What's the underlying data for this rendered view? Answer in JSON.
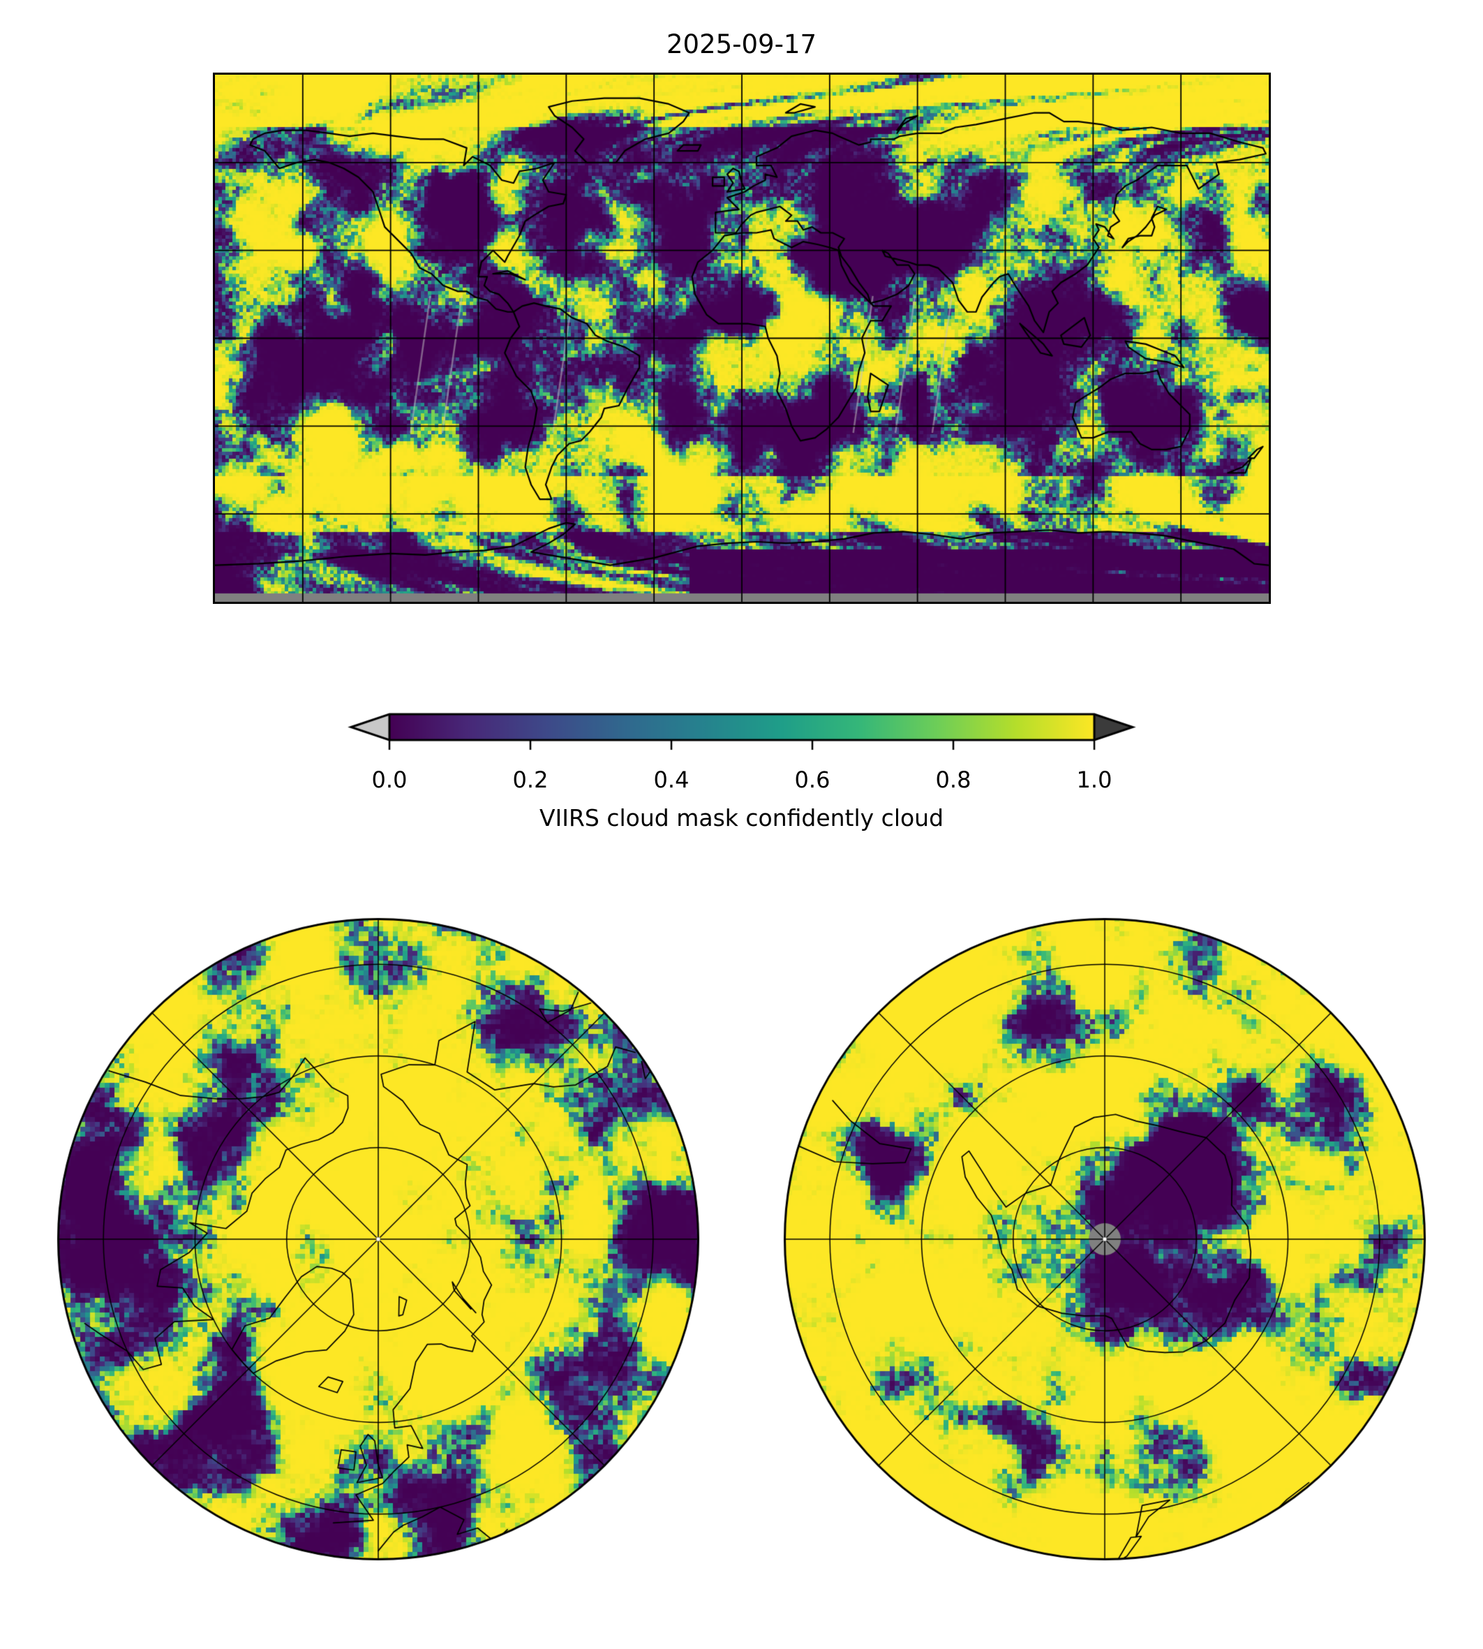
{
  "title": "2025-09-17",
  "colorbar": {
    "label": "VIIRS cloud mask confidently cloud",
    "tick_labels": [
      "0.0",
      "0.2",
      "0.4",
      "0.6",
      "0.8",
      "1.0"
    ],
    "vmin": 0,
    "vmax": 1,
    "colormap": "viridis",
    "extend": "both",
    "under_arrow_color": "#c8c8c8",
    "over_arrow_color": "#3b3b3b"
  },
  "colors": {
    "background": "#ffffff",
    "text": "#000000",
    "coastline": "#000000",
    "grid": "#000000",
    "frame": "#000000",
    "missing": "#808080",
    "pole_dot": "#ffffff",
    "viridis_stops": [
      "#440154",
      "#482878",
      "#3e4989",
      "#31688e",
      "#26828e",
      "#1f9e89",
      "#35b779",
      "#6ece58",
      "#b5de2b",
      "#fde725"
    ]
  },
  "chart_data": [
    {
      "type": "heatmap",
      "panel": "global_cloud_mask_map",
      "title": "2025-09-17",
      "projection": "equirectangular (plate carree), lon -180..180 deg, lat -90..90 deg",
      "variable": "VIIRS cloud mask confidently cloud (fraction)",
      "value_range": [
        0,
        1
      ],
      "colormap": "viridis",
      "gridline_spacing_deg": 30,
      "coastlines": true,
      "missing_data": "gray band poleward of about 87.5S along the bottom edge",
      "pattern_summary": "bimodal cloud-mask field: large saturated yellow (~1, cloudy) regions and dark purple (~0, clear) regions with narrow teal/green transitions; prominent clear areas over North Africa / Middle East / eastern Europe, interior North America, southern Africa, Australia and East Antarctica; mostly cloudy over the Arctic, tropical oceans and the Southern Ocean band"
    },
    {
      "type": "heatmap",
      "panel": "north_polar_map",
      "projection": "north polar azimuthal view, North Pole at center, lon 0 toward bottom, outer edge near 37.5N",
      "latitude_rings_deg": [
        75,
        60,
        45
      ],
      "meridian_spacing_deg": 45,
      "variable": "VIIRS cloud mask confidently cloud (fraction)",
      "value_range": [
        0,
        1
      ],
      "colormap": "viridis",
      "coastlines": true,
      "pattern_summary": "mostly cloudy (yellow) central Arctic; large clear (dark purple) diagonal band in the North Atlantic / Canada sector (upper left), clear patches on the East Siberia side (right) and over western Europe (bottom)"
    },
    {
      "type": "heatmap",
      "panel": "south_polar_map",
      "projection": "south polar azimuthal view, South Pole at center, lon 0 toward top, outer edge near 37.5S",
      "latitude_rings_deg": [
        -45,
        -60,
        -75
      ],
      "meridian_spacing_deg": 45,
      "variable": "VIIRS cloud mask confidently cloud (fraction)",
      "value_range": [
        0,
        1
      ],
      "colormap": "viridis",
      "coastlines": true,
      "missing_data": "gray disk poleward of about 87.5S at the center",
      "pattern_summary": "mostly cloudy (yellow) Southern Ocean ring; large clear (dark purple) mass over East Antarctica right of center, smaller clear patches near South America sector (upper left) and scattered around the edge"
    }
  ]
}
